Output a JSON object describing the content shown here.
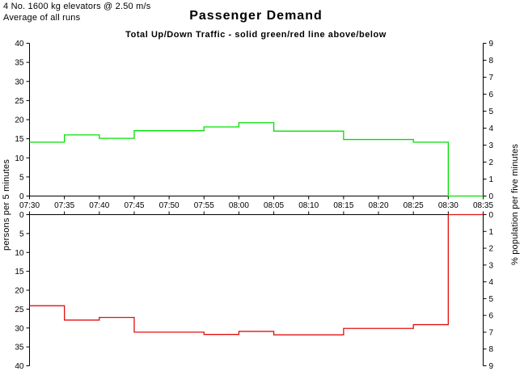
{
  "header": {
    "config_line": "4 No. 1600 kg elevators @ 2.50 m/s",
    "runs_line": "Average of all runs"
  },
  "chart_data": {
    "type": "line",
    "step_mode": "step-after",
    "title": "Passenger Demand",
    "subtitle": "Total Up/Down Traffic - solid green/red line above/below",
    "x_tick_labels": [
      "07:30",
      "07:35",
      "07:40",
      "07:45",
      "07:50",
      "07:55",
      "08:00",
      "08:05",
      "08:10",
      "08:15",
      "08:20",
      "08:25",
      "08:30",
      "08:35"
    ],
    "categories": [
      "07:30",
      "07:35",
      "07:40",
      "07:45",
      "07:50",
      "07:55",
      "08:00",
      "08:05",
      "08:10",
      "08:15",
      "08:20",
      "08:25",
      "08:30"
    ],
    "interval_minutes": 5,
    "series": [
      {
        "name": "Up traffic (solid green line, upper panel)",
        "color": "#00e000",
        "panel": "upper",
        "values": [
          14.1,
          16.0,
          15.1,
          17.1,
          17.1,
          18.1,
          19.2,
          17.0,
          17.0,
          14.8,
          14.8,
          14.1,
          0.0
        ]
      },
      {
        "name": "Down traffic (solid red line, lower panel)",
        "color": "#e01010",
        "panel": "lower",
        "values": [
          24.1,
          27.9,
          27.2,
          31.1,
          31.1,
          31.7,
          30.9,
          31.8,
          31.8,
          30.1,
          30.1,
          29.1,
          0.0
        ]
      }
    ],
    "left_axis": {
      "label": "persons per 5 minutes",
      "min": 0,
      "max": 40,
      "tick_step": 5
    },
    "right_axis": {
      "label": "% population per five minutes",
      "min": 0,
      "max": 9,
      "tick_step": 1
    },
    "panels": [
      {
        "name": "upper",
        "meaning": "up traffic",
        "zero_edge": "bottom"
      },
      {
        "name": "lower",
        "meaning": "down traffic",
        "zero_edge": "top"
      }
    ],
    "axis_color": "#000000",
    "grid": false,
    "legend": "none"
  }
}
